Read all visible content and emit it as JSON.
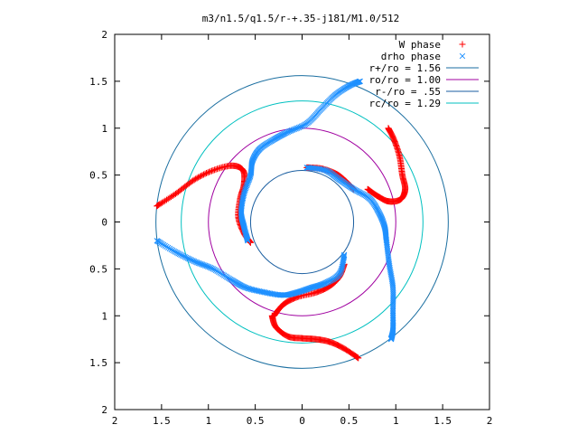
{
  "chart_data": {
    "type": "scatter",
    "title": "m3/n1.5/q1.5/r-+.35-j181/M1.0/512",
    "xlim": [
      -2,
      2
    ],
    "ylim": [
      -2,
      2
    ],
    "x_ticks": [
      -2,
      -1.5,
      -1,
      -0.5,
      0,
      0.5,
      1,
      1.5,
      2
    ],
    "y_ticks": [
      -2,
      -1.5,
      -1,
      -0.5,
      0,
      0.5,
      1,
      1.5,
      2
    ],
    "x_tick_labels": [
      "2",
      "1.5",
      "1",
      "0.5",
      "0",
      "0.5",
      "1",
      "1.5",
      "2"
    ],
    "y_tick_labels": [
      "2",
      "1.5",
      "1",
      "0.5",
      "0",
      "0.5",
      "1",
      "1.5",
      "2"
    ],
    "grid": false,
    "legend_position": "top-right",
    "series": [
      {
        "name": "W phase",
        "marker": "+",
        "color": "#ff0000",
        "arms": [
          [
            [
              -1.55,
              0.17
            ],
            [
              -1.35,
              0.3
            ],
            [
              -1.15,
              0.45
            ],
            [
              -0.95,
              0.55
            ],
            [
              -0.75,
              0.6
            ],
            [
              -0.63,
              0.55
            ],
            [
              -0.62,
              0.4
            ],
            [
              -0.66,
              0.25
            ],
            [
              -0.68,
              0.05
            ],
            [
              -0.62,
              -0.12
            ],
            [
              -0.55,
              -0.22
            ]
          ],
          [
            [
              -0.3,
              -1.0
            ],
            [
              -0.2,
              -0.88
            ],
            [
              -0.05,
              -0.8
            ],
            [
              0.15,
              -0.75
            ],
            [
              0.3,
              -0.68
            ],
            [
              0.4,
              -0.58
            ],
            [
              0.45,
              -0.45
            ]
          ],
          [
            [
              0.92,
              1.0
            ],
            [
              0.98,
              0.88
            ],
            [
              1.04,
              0.7
            ],
            [
              1.07,
              0.5
            ],
            [
              1.1,
              0.35
            ],
            [
              1.05,
              0.24
            ],
            [
              0.92,
              0.22
            ],
            [
              0.8,
              0.28
            ],
            [
              0.7,
              0.35
            ]
          ],
          [
            [
              0.6,
              -1.45
            ],
            [
              0.45,
              -1.35
            ],
            [
              0.3,
              -1.28
            ],
            [
              0.15,
              -1.25
            ],
            [
              0.0,
              -1.24
            ],
            [
              -0.15,
              -1.22
            ],
            [
              -0.28,
              -1.12
            ],
            [
              -0.32,
              -1.0
            ]
          ],
          [
            [
              0.05,
              0.58
            ],
            [
              0.2,
              0.57
            ],
            [
              0.35,
              0.52
            ],
            [
              0.45,
              0.45
            ],
            [
              0.55,
              0.35
            ]
          ]
        ]
      },
      {
        "name": "drho phase",
        "marker": "×",
        "color": "#1e90ff",
        "arms": [
          [
            [
              -0.58,
              -0.2
            ],
            [
              -0.62,
              -0.05
            ],
            [
              -0.65,
              0.1
            ],
            [
              -0.62,
              0.3
            ],
            [
              -0.55,
              0.5
            ],
            [
              -0.53,
              0.65
            ],
            [
              -0.45,
              0.78
            ],
            [
              -0.3,
              0.88
            ],
            [
              -0.15,
              0.96
            ],
            [
              0.05,
              1.05
            ],
            [
              0.2,
              1.2
            ],
            [
              0.35,
              1.35
            ],
            [
              0.5,
              1.45
            ],
            [
              0.62,
              1.5
            ]
          ],
          [
            [
              -1.55,
              -0.2
            ],
            [
              -1.35,
              -0.32
            ],
            [
              -1.15,
              -0.42
            ],
            [
              -0.95,
              -0.5
            ],
            [
              -0.75,
              -0.62
            ],
            [
              -0.6,
              -0.7
            ],
            [
              -0.4,
              -0.75
            ],
            [
              -0.2,
              -0.78
            ],
            [
              -0.05,
              -0.75
            ],
            [
              0.1,
              -0.7
            ],
            [
              0.25,
              -0.65
            ],
            [
              0.4,
              -0.55
            ],
            [
              0.45,
              -0.35
            ]
          ],
          [
            [
              0.05,
              0.58
            ],
            [
              0.25,
              0.55
            ],
            [
              0.4,
              0.45
            ],
            [
              0.55,
              0.35
            ],
            [
              0.72,
              0.25
            ],
            [
              0.82,
              0.1
            ],
            [
              0.88,
              -0.05
            ],
            [
              0.9,
              -0.2
            ],
            [
              0.93,
              -0.45
            ],
            [
              0.97,
              -0.7
            ],
            [
              0.97,
              -0.95
            ],
            [
              0.97,
              -1.15
            ],
            [
              0.95,
              -1.25
            ]
          ]
        ]
      }
    ],
    "circles": [
      {
        "name": "r+/ro = 1.56",
        "label": "r+/ro = 1.56",
        "r": 1.56,
        "color": "#1a6ea0"
      },
      {
        "name": "ro/ro = 1.00",
        "label": "ro/ro = 1.00",
        "r": 1.0,
        "color": "#a000a0"
      },
      {
        "name": "r-/ro = .55",
        "label": "r-/ro = .55",
        "r": 0.55,
        "color": "#1a5ea0"
      },
      {
        "name": "rc/ro = 1.29",
        "label": "rc/ro = 1.29",
        "r": 1.29,
        "color": "#00c0c0"
      }
    ]
  }
}
